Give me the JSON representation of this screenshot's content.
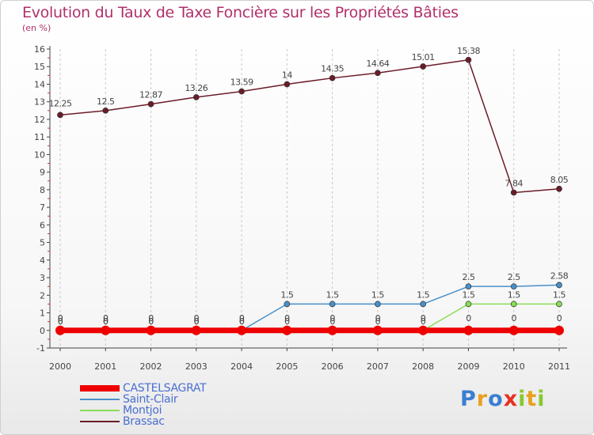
{
  "chart_data": {
    "type": "line",
    "title": "Evolution du Taux de Taxe Foncière sur les Propriétés Bâties",
    "subtitle": "(en %)",
    "x": [
      "2000",
      "2001",
      "2002",
      "2003",
      "2004",
      "2005",
      "2006",
      "2007",
      "2008",
      "2009",
      "2010",
      "2011"
    ],
    "yticks": [
      "-1",
      "0",
      "1",
      "2",
      "3",
      "4",
      "5",
      "6",
      "7",
      "8",
      "9",
      "10",
      "11",
      "12",
      "13",
      "14",
      "15",
      "16"
    ],
    "ylim": [
      -1,
      16
    ],
    "series": [
      {
        "name": "CASTELSAGRAT",
        "color": "#ee0000",
        "values": [
          0,
          0,
          0,
          0,
          0,
          0,
          0,
          0,
          0,
          0,
          0,
          0
        ],
        "labels": [
          "0",
          "0",
          "0",
          "0",
          "0",
          "0",
          "0",
          "0",
          "0",
          "0",
          "0",
          "0"
        ]
      },
      {
        "name": "Saint-Clair",
        "color": "#4a90c8",
        "values": [
          0,
          0,
          0,
          0,
          0,
          1.5,
          1.5,
          1.5,
          1.5,
          2.5,
          2.5,
          2.58
        ],
        "labels": [
          "0",
          "0",
          "0",
          "0",
          "0",
          "1.5",
          "1.5",
          "1.5",
          "1.5",
          "2.5",
          "2.5",
          "2.58"
        ]
      },
      {
        "name": "Montjoi",
        "color": "#88dd55",
        "values": [
          0,
          0,
          0,
          0,
          0,
          0,
          0,
          0,
          0,
          1.5,
          1.5,
          1.5
        ],
        "labels": [
          "0",
          "0",
          "0",
          "0",
          "0",
          "0",
          "0",
          "0",
          "0",
          "1.5",
          "1.5",
          "1.5"
        ]
      },
      {
        "name": "Brassac",
        "color": "#6b1c28",
        "values": [
          12.25,
          12.5,
          12.87,
          13.26,
          13.59,
          14,
          14.35,
          14.64,
          15.01,
          15.38,
          7.84,
          8.05
        ],
        "labels": [
          "12.25",
          "12.5",
          "12.87",
          "13.26",
          "13.59",
          "14",
          "14.35",
          "14.64",
          "15.01",
          "15.38",
          "7.84",
          "8.05"
        ]
      }
    ]
  },
  "logo": {
    "letters": [
      "P",
      "r",
      "o",
      "x",
      "i",
      "t",
      "i"
    ],
    "colors": [
      "#3a7fd0",
      "#e8a020",
      "#3a7fd0",
      "#e83020",
      "#88c830",
      "#e8a020",
      "#88c830"
    ]
  }
}
